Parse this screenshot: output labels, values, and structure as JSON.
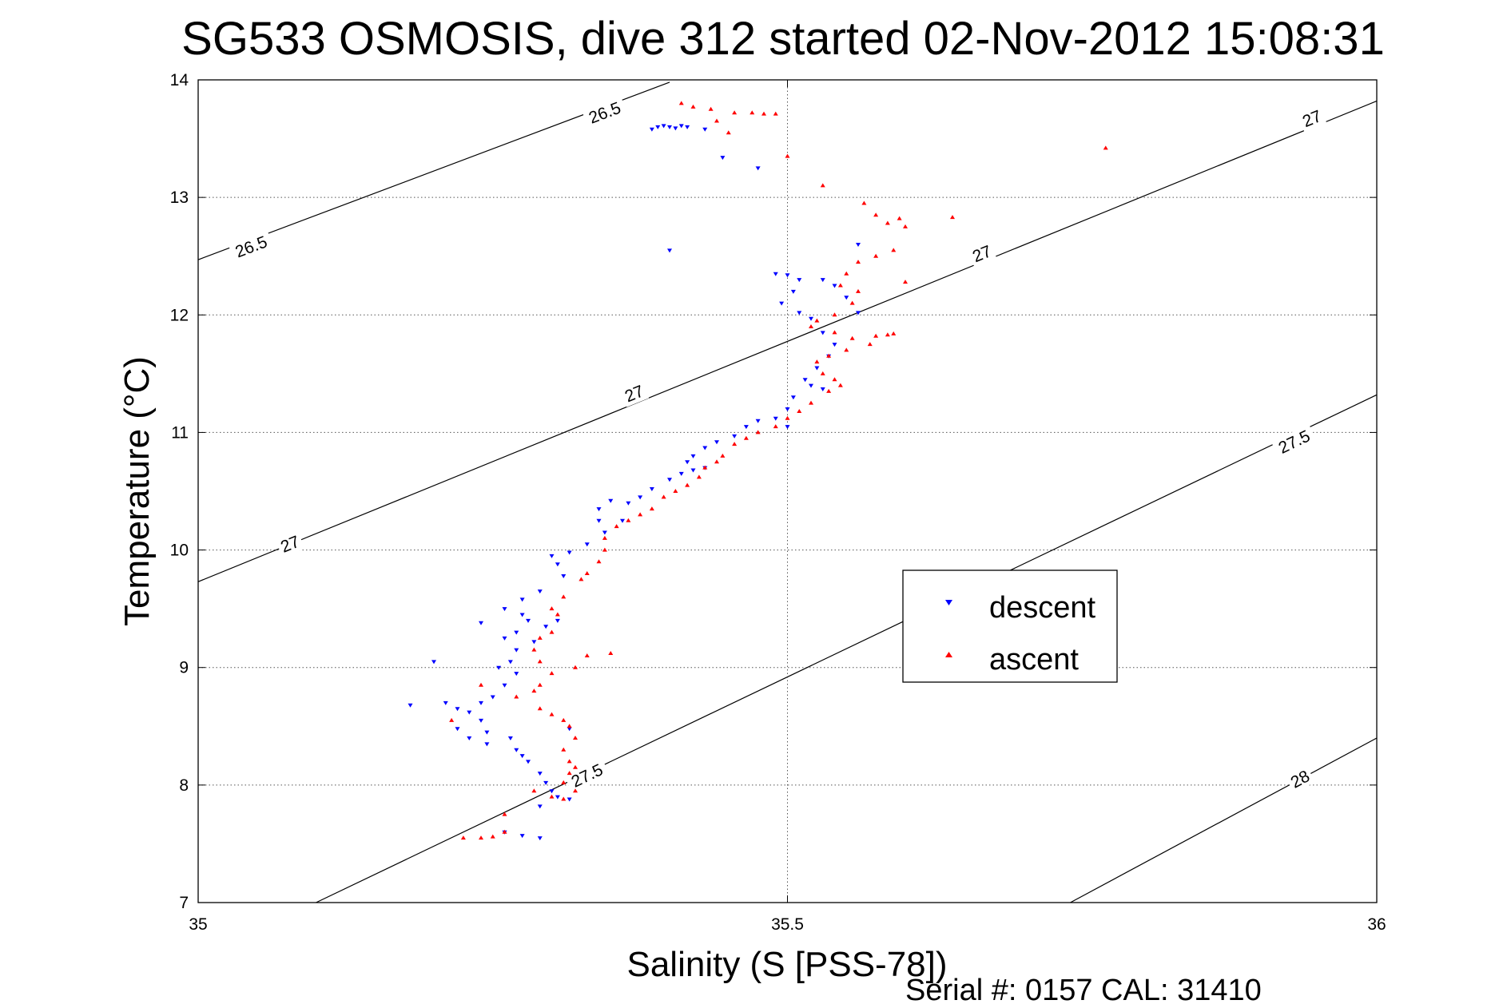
{
  "chart_data": {
    "type": "scatter",
    "title": "SG533 OSMOSIS, dive 312 started 02-Nov-2012 15:08:31",
    "xlabel": "Salinity (S [PSS-78])",
    "ylabel": "Temperature (°C)",
    "xlim": [
      35,
      36
    ],
    "ylim": [
      7,
      14
    ],
    "xticks": [
      "35",
      "35.5",
      "36"
    ],
    "yticks": [
      "7",
      "8",
      "9",
      "10",
      "11",
      "12",
      "13",
      "14"
    ],
    "grid": true,
    "legend_position": "inside-right",
    "footer_text": "Serial #: 0157  CAL: 31410",
    "colors": {
      "descent": "#0000ff",
      "ascent": "#ff0000"
    },
    "contours": [
      {
        "label": "26.5",
        "points": [
          [
            35.0,
            12.47
          ],
          [
            35.4,
            13.98
          ]
        ],
        "label_positions": [
          [
            35.045,
            12.58
          ],
          [
            35.345,
            13.72
          ]
        ]
      },
      {
        "label": "27",
        "points": [
          [
            35.0,
            9.73
          ],
          [
            36.0,
            13.82
          ]
        ],
        "label_positions": [
          [
            35.078,
            10.05
          ],
          [
            35.37,
            11.33
          ],
          [
            35.665,
            12.52
          ],
          [
            35.945,
            13.67
          ]
        ]
      },
      {
        "label": "27.5",
        "points": [
          [
            35.1,
            7.0
          ],
          [
            36.0,
            11.32
          ]
        ],
        "label_positions": [
          [
            35.33,
            8.08
          ],
          [
            35.93,
            10.92
          ]
        ]
      },
      {
        "label": "28",
        "points": [
          [
            35.74,
            7.0
          ],
          [
            36.0,
            8.4
          ]
        ],
        "label_positions": [
          [
            35.935,
            8.05
          ]
        ]
      }
    ],
    "series": [
      {
        "name": "descent",
        "marker": "triangle-down",
        "points": [
          [
            35.385,
            13.58
          ],
          [
            35.39,
            13.6
          ],
          [
            35.395,
            13.61
          ],
          [
            35.4,
            13.6
          ],
          [
            35.405,
            13.59
          ],
          [
            35.41,
            13.61
          ],
          [
            35.415,
            13.6
          ],
          [
            35.43,
            13.58
          ],
          [
            35.445,
            13.34
          ],
          [
            35.475,
            13.25
          ],
          [
            35.49,
            12.35
          ],
          [
            35.5,
            12.34
          ],
          [
            35.51,
            12.3
          ],
          [
            35.505,
            12.2
          ],
          [
            35.495,
            12.1
          ],
          [
            35.51,
            12.02
          ],
          [
            35.52,
            11.97
          ],
          [
            35.53,
            12.3
          ],
          [
            35.54,
            12.25
          ],
          [
            35.55,
            12.15
          ],
          [
            35.56,
            12.02
          ],
          [
            35.53,
            11.85
          ],
          [
            35.54,
            11.75
          ],
          [
            35.535,
            11.65
          ],
          [
            35.525,
            11.55
          ],
          [
            35.515,
            11.45
          ],
          [
            35.52,
            11.4
          ],
          [
            35.53,
            11.37
          ],
          [
            35.505,
            11.3
          ],
          [
            35.5,
            11.2
          ],
          [
            35.49,
            11.12
          ],
          [
            35.475,
            11.1
          ],
          [
            35.465,
            11.05
          ],
          [
            35.455,
            10.97
          ],
          [
            35.44,
            10.92
          ],
          [
            35.43,
            10.87
          ],
          [
            35.42,
            10.8
          ],
          [
            35.415,
            10.75
          ],
          [
            35.42,
            10.68
          ],
          [
            35.41,
            10.65
          ],
          [
            35.4,
            10.6
          ],
          [
            35.385,
            10.52
          ],
          [
            35.375,
            10.45
          ],
          [
            35.365,
            10.4
          ],
          [
            35.35,
            10.42
          ],
          [
            35.34,
            10.35
          ],
          [
            35.34,
            10.25
          ],
          [
            35.345,
            10.15
          ],
          [
            35.33,
            10.05
          ],
          [
            35.315,
            9.98
          ],
          [
            35.3,
            9.95
          ],
          [
            35.305,
            9.88
          ],
          [
            35.31,
            9.78
          ],
          [
            35.29,
            9.65
          ],
          [
            35.275,
            9.58
          ],
          [
            35.26,
            9.5
          ],
          [
            35.275,
            9.45
          ],
          [
            35.28,
            9.4
          ],
          [
            35.295,
            9.35
          ],
          [
            35.27,
            9.3
          ],
          [
            35.26,
            9.25
          ],
          [
            35.285,
            9.22
          ],
          [
            35.27,
            9.15
          ],
          [
            35.265,
            9.05
          ],
          [
            35.255,
            9.0
          ],
          [
            35.27,
            8.95
          ],
          [
            35.26,
            8.85
          ],
          [
            35.25,
            8.75
          ],
          [
            35.24,
            8.7
          ],
          [
            35.23,
            8.62
          ],
          [
            35.24,
            8.55
          ],
          [
            35.245,
            8.45
          ],
          [
            35.23,
            8.4
          ],
          [
            35.22,
            8.65
          ],
          [
            35.21,
            8.7
          ],
          [
            35.18,
            8.68
          ],
          [
            35.245,
            8.35
          ],
          [
            35.265,
            8.4
          ],
          [
            35.27,
            8.3
          ],
          [
            35.275,
            8.25
          ],
          [
            35.28,
            8.2
          ],
          [
            35.29,
            8.1
          ],
          [
            35.295,
            8.02
          ],
          [
            35.3,
            7.95
          ],
          [
            35.305,
            7.9
          ],
          [
            35.315,
            7.88
          ],
          [
            35.29,
            7.82
          ],
          [
            35.26,
            7.6
          ],
          [
            35.275,
            7.57
          ],
          [
            35.29,
            7.55
          ],
          [
            35.4,
            12.55
          ],
          [
            35.56,
            12.6
          ],
          [
            35.5,
            11.05
          ],
          [
            35.43,
            10.7
          ],
          [
            35.36,
            10.25
          ],
          [
            35.305,
            9.4
          ],
          [
            35.24,
            9.38
          ],
          [
            35.2,
            9.05
          ],
          [
            35.22,
            8.48
          ],
          [
            35.315,
            8.48
          ]
        ]
      },
      {
        "name": "ascent",
        "marker": "triangle-up",
        "points": [
          [
            35.41,
            13.8
          ],
          [
            35.42,
            13.77
          ],
          [
            35.435,
            13.75
          ],
          [
            35.455,
            13.72
          ],
          [
            35.47,
            13.72
          ],
          [
            35.48,
            13.71
          ],
          [
            35.49,
            13.71
          ],
          [
            35.44,
            13.65
          ],
          [
            35.45,
            13.55
          ],
          [
            35.5,
            13.35
          ],
          [
            35.53,
            13.1
          ],
          [
            35.565,
            12.95
          ],
          [
            35.575,
            12.85
          ],
          [
            35.585,
            12.78
          ],
          [
            35.595,
            12.82
          ],
          [
            35.6,
            12.75
          ],
          [
            35.59,
            12.55
          ],
          [
            35.575,
            12.5
          ],
          [
            35.56,
            12.45
          ],
          [
            35.55,
            12.35
          ],
          [
            35.545,
            12.25
          ],
          [
            35.56,
            12.2
          ],
          [
            35.555,
            12.1
          ],
          [
            35.54,
            12.0
          ],
          [
            35.525,
            11.95
          ],
          [
            35.52,
            11.9
          ],
          [
            35.54,
            11.85
          ],
          [
            35.555,
            11.8
          ],
          [
            35.575,
            11.82
          ],
          [
            35.585,
            11.83
          ],
          [
            35.59,
            11.84
          ],
          [
            35.57,
            11.75
          ],
          [
            35.55,
            11.7
          ],
          [
            35.535,
            11.65
          ],
          [
            35.525,
            11.6
          ],
          [
            35.53,
            11.5
          ],
          [
            35.54,
            11.45
          ],
          [
            35.545,
            11.4
          ],
          [
            35.535,
            11.35
          ],
          [
            35.52,
            11.25
          ],
          [
            35.51,
            11.18
          ],
          [
            35.5,
            11.12
          ],
          [
            35.49,
            11.05
          ],
          [
            35.475,
            11.0
          ],
          [
            35.465,
            10.95
          ],
          [
            35.455,
            10.9
          ],
          [
            35.445,
            10.8
          ],
          [
            35.44,
            10.75
          ],
          [
            35.43,
            10.7
          ],
          [
            35.425,
            10.62
          ],
          [
            35.415,
            10.55
          ],
          [
            35.405,
            10.5
          ],
          [
            35.395,
            10.45
          ],
          [
            35.385,
            10.35
          ],
          [
            35.375,
            10.3
          ],
          [
            35.365,
            10.25
          ],
          [
            35.355,
            10.2
          ],
          [
            35.345,
            10.1
          ],
          [
            35.345,
            10.0
          ],
          [
            35.34,
            9.9
          ],
          [
            35.33,
            9.8
          ],
          [
            35.325,
            9.75
          ],
          [
            35.31,
            9.6
          ],
          [
            35.3,
            9.5
          ],
          [
            35.305,
            9.45
          ],
          [
            35.3,
            9.3
          ],
          [
            35.29,
            9.25
          ],
          [
            35.285,
            9.15
          ],
          [
            35.29,
            9.05
          ],
          [
            35.32,
            9.0
          ],
          [
            35.33,
            9.1
          ],
          [
            35.3,
            8.95
          ],
          [
            35.29,
            8.85
          ],
          [
            35.285,
            8.8
          ],
          [
            35.27,
            8.75
          ],
          [
            35.29,
            8.65
          ],
          [
            35.3,
            8.6
          ],
          [
            35.31,
            8.55
          ],
          [
            35.315,
            8.5
          ],
          [
            35.32,
            8.4
          ],
          [
            35.31,
            8.3
          ],
          [
            35.315,
            8.2
          ],
          [
            35.32,
            8.15
          ],
          [
            35.315,
            8.1
          ],
          [
            35.31,
            8.02
          ],
          [
            35.32,
            7.95
          ],
          [
            35.285,
            7.95
          ],
          [
            35.3,
            7.9
          ],
          [
            35.31,
            7.88
          ],
          [
            35.26,
            7.6
          ],
          [
            35.25,
            7.56
          ],
          [
            35.24,
            7.55
          ],
          [
            35.225,
            7.55
          ],
          [
            35.26,
            7.75
          ],
          [
            35.35,
            9.12
          ],
          [
            35.24,
            8.85
          ],
          [
            35.215,
            8.55
          ],
          [
            35.6,
            12.28
          ],
          [
            35.77,
            13.42
          ],
          [
            35.64,
            12.83
          ]
        ]
      }
    ]
  }
}
